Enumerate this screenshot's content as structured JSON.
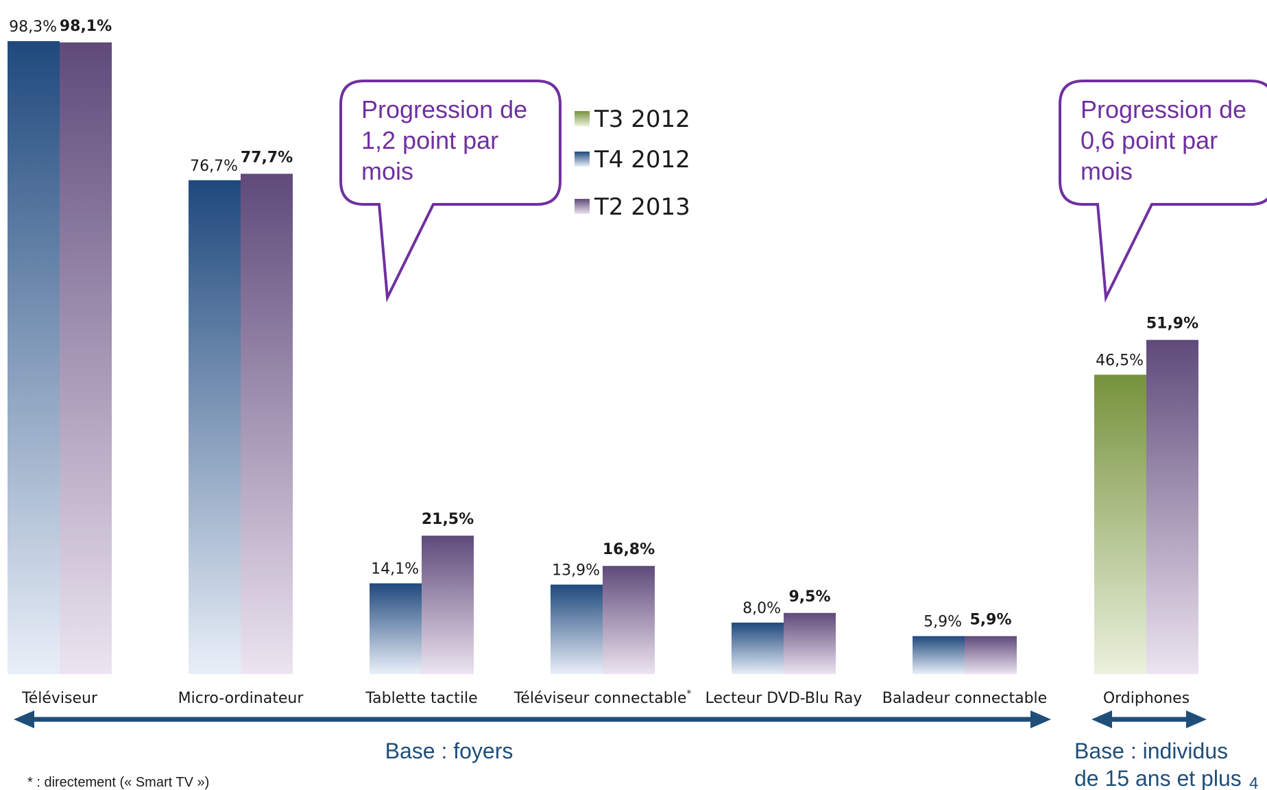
{
  "chart_data": {
    "type": "bar",
    "categories": [
      "Téléviseur",
      "Micro-ordinateur",
      "Tablette tactile",
      "Téléviseur connectable",
      "Lecteur DVD-Blu Ray",
      "Baladeur connectable",
      "Ordiphones"
    ],
    "category_superscripts": [
      "",
      "",
      "",
      "*",
      "",
      "",
      ""
    ],
    "series": [
      {
        "name": "T3 2012",
        "values": [
          null,
          null,
          null,
          null,
          null,
          null,
          46.5
        ],
        "labels": [
          "",
          "",
          "",
          "",
          "",
          "",
          "46,5%"
        ],
        "color_top": "#76923c",
        "color_bottom": "#ebf1de"
      },
      {
        "name": "T4 2012",
        "values": [
          98.3,
          76.7,
          14.1,
          13.9,
          8.0,
          5.9,
          null
        ],
        "labels": [
          "98,3%",
          "76,7%",
          "14,1%",
          "13,9%",
          "8,0%",
          "5,9%",
          ""
        ],
        "color_top": "#1f497d",
        "color_bottom": "#e9eff8"
      },
      {
        "name": "T2 2013",
        "values": [
          98.1,
          77.7,
          21.5,
          16.8,
          9.5,
          5.9,
          51.9
        ],
        "labels": [
          "98,1%",
          "77,7%",
          "21,5%",
          "16,8%",
          "9,5%",
          "5,9%",
          "51,9%"
        ],
        "color_top": "#5f4a7a",
        "color_bottom": "#ece4f0"
      }
    ],
    "ylim": [
      0,
      100
    ],
    "legend_position": "top-center",
    "grid": false
  },
  "callouts": [
    {
      "lines": [
        "Progression de",
        "1,2 point par",
        "mois"
      ]
    },
    {
      "lines": [
        "Progression de",
        "0,6 point par",
        "mois"
      ]
    }
  ],
  "bases": [
    {
      "lines": [
        "Base : foyers"
      ]
    },
    {
      "lines": [
        "Base : individus",
        "de 15 ans et plus"
      ]
    }
  ],
  "footnote": "* : directement (« Smart TV »)",
  "page_number": "4",
  "colors": {
    "callout": "#7030a0",
    "arrow": "#1f4e79"
  }
}
